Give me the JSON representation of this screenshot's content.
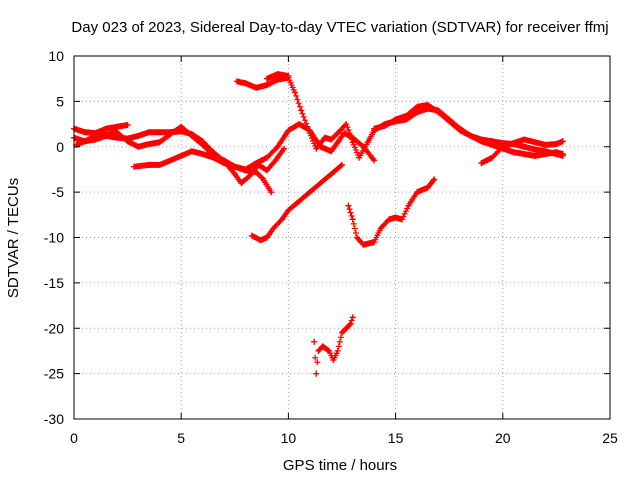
{
  "chart_data": {
    "type": "scatter",
    "title": "Day 023 of 2023, Sidereal Day-to-day VTEC variation (SDTVAR) for receiver ffmj",
    "xlabel": "GPS time / hours",
    "ylabel": "SDTVAR / TECUs",
    "xlim": [
      0,
      25
    ],
    "ylim": [
      -30,
      10
    ],
    "xticks": [
      "0",
      "5",
      "10",
      "15",
      "20",
      "25"
    ],
    "yticks": [
      "10",
      "5",
      "0",
      "-5",
      "-10",
      "-15",
      "-20",
      "-25",
      "-30"
    ],
    "grid": true,
    "marker": "+",
    "series_color": "#ff0000",
    "segments": [
      [
        [
          0.0,
          2.0
        ],
        [
          0.5,
          1.6
        ],
        [
          1.0,
          1.5
        ],
        [
          1.5,
          2.0
        ],
        [
          2.0,
          2.2
        ],
        [
          2.5,
          2.4
        ]
      ],
      [
        [
          0.0,
          1.0
        ],
        [
          0.5,
          0.6
        ],
        [
          1.0,
          0.8
        ],
        [
          1.5,
          1.2
        ],
        [
          2.0,
          1.0
        ],
        [
          2.5,
          0.9
        ],
        [
          3.0,
          1.2
        ],
        [
          3.5,
          1.6
        ],
        [
          4.0,
          1.6
        ],
        [
          4.5,
          1.6
        ],
        [
          5.0,
          1.7
        ],
        [
          5.5,
          1.4
        ],
        [
          6.0,
          0.6
        ],
        [
          6.5,
          -0.6
        ],
        [
          7.0,
          -1.6
        ],
        [
          7.5,
          -3.0
        ],
        [
          7.8,
          -4.0
        ],
        [
          8.2,
          -3.2
        ],
        [
          8.6,
          -2.0
        ],
        [
          9.0,
          -2.6
        ],
        [
          9.4,
          -1.5
        ],
        [
          9.8,
          -0.2
        ]
      ],
      [
        [
          0.1,
          0.2
        ],
        [
          0.5,
          0.6
        ],
        [
          1.0,
          1.2
        ],
        [
          1.5,
          1.3
        ],
        [
          2.0,
          1.6
        ],
        [
          2.5,
          0.6
        ],
        [
          3.0,
          0.0
        ],
        [
          3.5,
          0.3
        ],
        [
          4.0,
          0.5
        ],
        [
          4.5,
          1.4
        ],
        [
          5.0,
          2.2
        ],
        [
          5.5,
          1.2
        ],
        [
          6.0,
          0.2
        ],
        [
          6.5,
          -1.0
        ],
        [
          7.0,
          -1.5
        ],
        [
          7.5,
          -2.2
        ],
        [
          8.0,
          -2.6
        ],
        [
          8.5,
          -2.8
        ],
        [
          8.8,
          -3.5
        ],
        [
          9.2,
          -5.0
        ]
      ],
      [
        [
          2.8,
          -2.2
        ],
        [
          3.5,
          -2.0
        ],
        [
          4.0,
          -2.0
        ],
        [
          4.5,
          -1.5
        ],
        [
          5.0,
          -1.0
        ],
        [
          5.5,
          -0.5
        ],
        [
          6.0,
          -0.8
        ],
        [
          6.5,
          -1.2
        ],
        [
          7.0,
          -1.8
        ],
        [
          7.5,
          -2.2
        ],
        [
          8.0,
          -2.5
        ],
        [
          8.5,
          -1.8
        ],
        [
          9.0,
          -1.2
        ],
        [
          9.5,
          0.0
        ],
        [
          10.0,
          1.8
        ],
        [
          10.5,
          2.5
        ],
        [
          11.0,
          1.8
        ],
        [
          11.5,
          0.0
        ],
        [
          12.0,
          -0.5
        ],
        [
          12.3,
          0.5
        ],
        [
          12.6,
          1.5
        ],
        [
          13.0,
          1.0
        ],
        [
          13.5,
          0.0
        ],
        [
          14.0,
          -1.5
        ]
      ],
      [
        [
          7.6,
          7.2
        ],
        [
          8.0,
          7.0
        ],
        [
          8.5,
          6.5
        ],
        [
          9.0,
          6.8
        ],
        [
          9.5,
          7.4
        ],
        [
          10.0,
          7.6
        ],
        [
          10.3,
          6.0
        ],
        [
          10.6,
          4.0
        ],
        [
          11.0,
          1.5
        ],
        [
          11.3,
          -0.2
        ],
        [
          11.7,
          1.0
        ],
        [
          12.0,
          0.8
        ],
        [
          12.3,
          1.5
        ],
        [
          12.7,
          2.5
        ],
        [
          13.0,
          0.5
        ],
        [
          13.3,
          -1.2
        ],
        [
          13.7,
          0.5
        ],
        [
          14.0,
          1.8
        ],
        [
          14.5,
          2.5
        ],
        [
          15.0,
          2.8
        ],
        [
          15.5,
          3.0
        ],
        [
          16.0,
          3.8
        ],
        [
          16.5,
          4.2
        ],
        [
          17.0,
          4.0
        ],
        [
          17.5,
          3.0
        ],
        [
          18.0,
          2.0
        ],
        [
          18.5,
          1.2
        ],
        [
          19.0,
          0.8
        ],
        [
          19.5,
          0.6
        ],
        [
          20.0,
          0.4
        ],
        [
          20.5,
          0.3
        ],
        [
          21.0,
          0.0
        ],
        [
          21.5,
          -0.3
        ],
        [
          22.0,
          -0.5
        ],
        [
          22.5,
          -0.8
        ],
        [
          22.8,
          -1.0
        ]
      ],
      [
        [
          9.0,
          7.5
        ],
        [
          9.5,
          8.0
        ],
        [
          10.0,
          7.8
        ]
      ],
      [
        [
          14.0,
          2.0
        ],
        [
          14.5,
          2.3
        ],
        [
          15.0,
          3.0
        ],
        [
          15.5,
          3.4
        ],
        [
          16.0,
          4.4
        ],
        [
          16.5,
          4.6
        ],
        [
          17.0,
          3.8
        ],
        [
          17.5,
          2.8
        ],
        [
          18.0,
          1.8
        ],
        [
          18.5,
          1.2
        ],
        [
          19.0,
          0.6
        ],
        [
          19.5,
          0.2
        ],
        [
          20.0,
          -0.2
        ],
        [
          20.5,
          -0.6
        ],
        [
          21.0,
          -0.8
        ],
        [
          21.5,
          -1.0
        ],
        [
          22.0,
          -0.8
        ],
        [
          22.5,
          -0.6
        ],
        [
          22.8,
          -0.8
        ]
      ],
      [
        [
          19.0,
          -1.8
        ],
        [
          19.5,
          -1.2
        ],
        [
          20.0,
          0.0
        ],
        [
          20.5,
          0.4
        ],
        [
          21.0,
          0.8
        ],
        [
          21.5,
          0.5
        ],
        [
          22.0,
          0.2
        ],
        [
          22.5,
          0.3
        ],
        [
          22.8,
          0.6
        ]
      ],
      [
        [
          8.3,
          -9.8
        ],
        [
          8.7,
          -10.3
        ],
        [
          9.0,
          -10.0
        ],
        [
          9.3,
          -9.0
        ],
        [
          9.7,
          -8.0
        ],
        [
          10.0,
          -7.0
        ],
        [
          10.5,
          -6.0
        ],
        [
          11.0,
          -5.0
        ],
        [
          11.5,
          -4.0
        ],
        [
          12.0,
          -3.0
        ],
        [
          12.5,
          -2.0
        ]
      ],
      [
        [
          12.8,
          -6.5
        ],
        [
          13.0,
          -8.0
        ],
        [
          13.2,
          -10.0
        ],
        [
          13.5,
          -10.8
        ],
        [
          14.0,
          -10.5
        ],
        [
          14.3,
          -9.0
        ],
        [
          14.7,
          -8.0
        ],
        [
          15.0,
          -7.8
        ],
        [
          15.3,
          -8.0
        ],
        [
          15.6,
          -6.5
        ],
        [
          16.0,
          -5.0
        ],
        [
          16.5,
          -4.5
        ],
        [
          16.8,
          -3.6
        ]
      ],
      [
        [
          11.2,
          -21.5
        ],
        [
          11.3,
          -25.0
        ],
        [
          11.4,
          -22.5
        ],
        [
          11.6,
          -22.0
        ],
        [
          11.9,
          -22.5
        ],
        [
          12.1,
          -23.5
        ],
        [
          12.3,
          -22.5
        ],
        [
          12.5,
          -20.5
        ],
        [
          12.7,
          -20.0
        ],
        [
          12.9,
          -19.5
        ],
        [
          13.0,
          -18.8
        ]
      ]
    ]
  }
}
